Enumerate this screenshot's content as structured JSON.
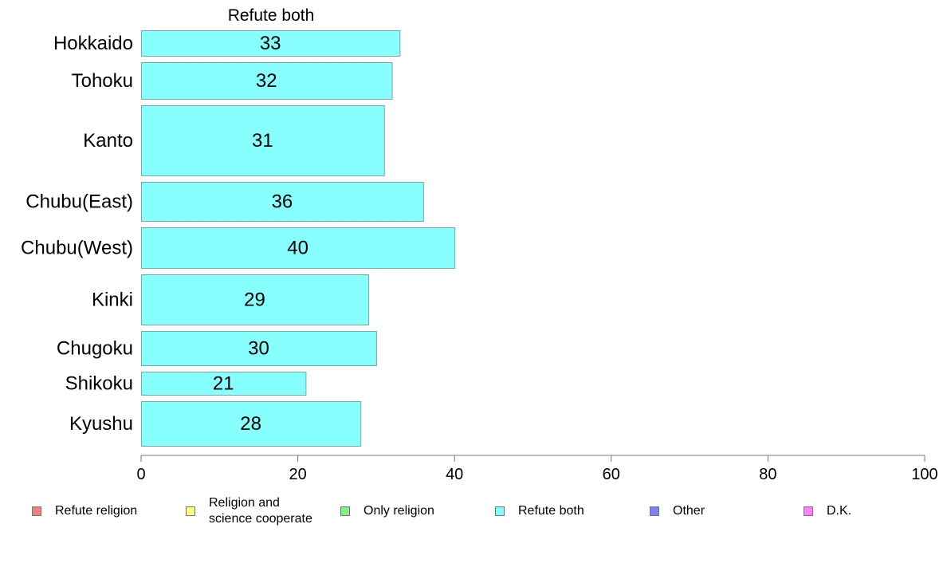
{
  "chart_data": {
    "type": "bar",
    "orientation": "horizontal",
    "title": "Refute both",
    "categories": [
      "Hokkaido",
      "Tohoku",
      "Kanto",
      "Chubu(East)",
      "Chubu(West)",
      "Kinki",
      "Chugoku",
      "Shikoku",
      "Kyushu"
    ],
    "values": [
      33,
      32,
      31,
      36,
      40,
      29,
      30,
      21,
      28
    ],
    "xlim": [
      0,
      100
    ],
    "xticks": [
      "0",
      "20",
      "40",
      "60",
      "80",
      "100"
    ],
    "bar_color": "#88ffff",
    "legend_placement": "bottom",
    "legend": [
      {
        "label": "Refute religion",
        "color": "#f08080"
      },
      {
        "label": "Religion and\nscience cooperate",
        "color": "#ffff80"
      },
      {
        "label": "Only religion",
        "color": "#80f080"
      },
      {
        "label": "Refute both",
        "color": "#80ffff"
      },
      {
        "label": "Other",
        "color": "#8080f0"
      },
      {
        "label": "D.K.",
        "color": "#ff80ff"
      }
    ]
  }
}
